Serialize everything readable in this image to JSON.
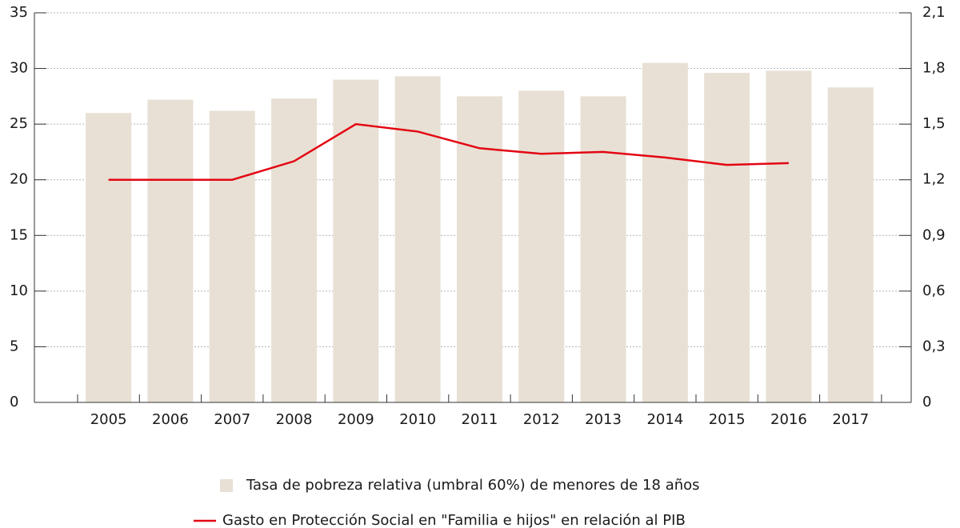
{
  "chart_data": {
    "type": "bar-line",
    "categories": [
      "2005",
      "2006",
      "2007",
      "2008",
      "2009",
      "2010",
      "2011",
      "2012",
      "2013",
      "2014",
      "2015",
      "2016",
      "2017"
    ],
    "series": [
      {
        "name": "Tasa de pobreza relativa (umbral 60%) de menores de 18 años",
        "type": "bar",
        "color": "#e8e0d4",
        "values": [
          26.0,
          27.2,
          26.2,
          27.3,
          29.0,
          29.3,
          27.5,
          28.0,
          27.5,
          30.5,
          29.6,
          29.8,
          28.3
        ]
      },
      {
        "name": "Gasto en Protección Social en \"Familia e hijos\" en relación al PIB",
        "type": "line",
        "color": "#e30613",
        "axis": "y2",
        "values": [
          1.2,
          1.2,
          1.2,
          1.3,
          1.5,
          1.46,
          1.37,
          1.34,
          1.35,
          1.32,
          1.28,
          1.29,
          null
        ]
      }
    ],
    "ylim": [
      0,
      35
    ],
    "yticks": [
      0,
      5,
      10,
      15,
      20,
      25,
      30,
      35
    ],
    "y2lim": [
      0,
      2.1
    ],
    "y2ticks": [
      0,
      {
        "value": 0.3,
        "label": "0,3"
      },
      {
        "value": 0.6,
        "label": "0,6"
      },
      {
        "value": 0.9,
        "label": "0,9"
      },
      {
        "value": 1.2,
        "label": "1,2"
      },
      {
        "value": 1.5,
        "label": "1,5"
      },
      {
        "value": 1.8,
        "label": "1,8"
      },
      {
        "value": 2.1,
        "label": "2,1"
      }
    ],
    "grid": true,
    "legend": "bottom"
  }
}
